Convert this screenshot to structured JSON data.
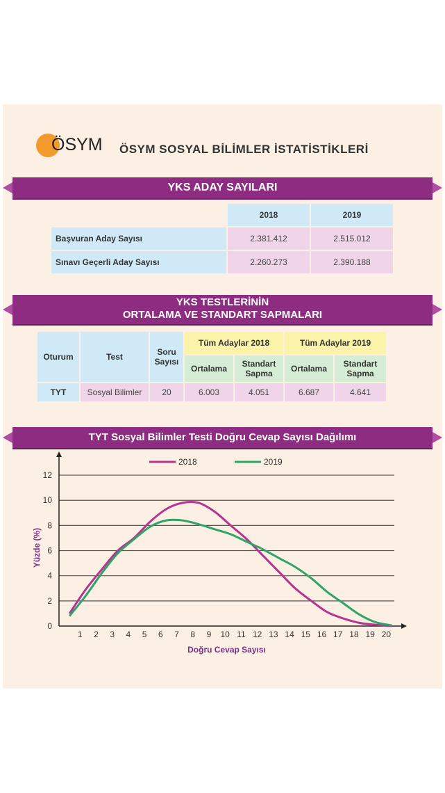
{
  "logo": {
    "text": "ÖSYM"
  },
  "page_title": "ÖSYM SOSYAL BİLİMLER İSTATİSTİKLERİ",
  "section1": {
    "title": "YKS ADAY SAYILARI",
    "headers": [
      "2018",
      "2019"
    ],
    "rows": [
      {
        "label": "Başvuran Aday Sayısı",
        "v2018": "2.381.412",
        "v2019": "2.515.012"
      },
      {
        "label": "Sınavı Geçerli Aday Sayısı",
        "v2018": "2.260.273",
        "v2019": "2.390.188"
      }
    ]
  },
  "section2": {
    "title_line1": "YKS TESTLERİNİN",
    "title_line2": "ORTALAMA VE STANDART SAPMALARI",
    "h_oturum": "Oturum",
    "h_test": "Test",
    "h_soru_1": "Soru",
    "h_soru_2": "Sayısı",
    "h_group2018": "Tüm Adaylar 2018",
    "h_group2019": "Tüm Adaylar 2019",
    "h_ort": "Ortalama",
    "h_std_1": "Standart",
    "h_std_2": "Sapma",
    "row": {
      "oturum": "TYT",
      "test": "Sosyal Bilimler",
      "soru": "20",
      "ort2018": "6.003",
      "std2018": "4.051",
      "ort2019": "6.687",
      "std2019": "4.641"
    }
  },
  "section3": {
    "title": "TYT Sosyal Bilimler Testi Doğru Cevap Sayısı Dağılımı"
  },
  "chart_data": {
    "type": "line",
    "title": "TYT Sosyal Bilimler Testi Doğru Cevap Sayısı Dağılımı",
    "xlabel": "Doğru Cevap Sayısı",
    "ylabel": "Yüzde (%)",
    "x": [
      0,
      1,
      2,
      3,
      4,
      5,
      6,
      7,
      8,
      9,
      10,
      11,
      12,
      13,
      14,
      15,
      16,
      17,
      18,
      19,
      20
    ],
    "x_ticks": [
      1,
      2,
      3,
      4,
      5,
      6,
      7,
      8,
      9,
      10,
      11,
      12,
      13,
      14,
      15,
      16,
      17,
      18,
      19,
      20
    ],
    "y_ticks": [
      0,
      2,
      4,
      6,
      8,
      10,
      12
    ],
    "ylim": [
      0,
      13
    ],
    "grid": "horizontal",
    "legend_position": "top",
    "series": [
      {
        "name": "2018",
        "color": "#b8338f",
        "values": [
          1.0,
          2.9,
          4.5,
          6.0,
          7.0,
          8.3,
          9.3,
          9.8,
          9.8,
          9.1,
          8.0,
          6.9,
          5.6,
          4.3,
          3.0,
          2.0,
          1.1,
          0.6,
          0.25,
          0.1,
          0.0
        ]
      },
      {
        "name": "2019",
        "color": "#2ea566",
        "values": [
          0.8,
          2.4,
          4.2,
          5.8,
          6.9,
          7.9,
          8.4,
          8.4,
          8.1,
          7.7,
          7.3,
          6.7,
          6.1,
          5.4,
          4.7,
          3.8,
          2.7,
          1.8,
          0.9,
          0.3,
          0.05
        ]
      }
    ]
  }
}
